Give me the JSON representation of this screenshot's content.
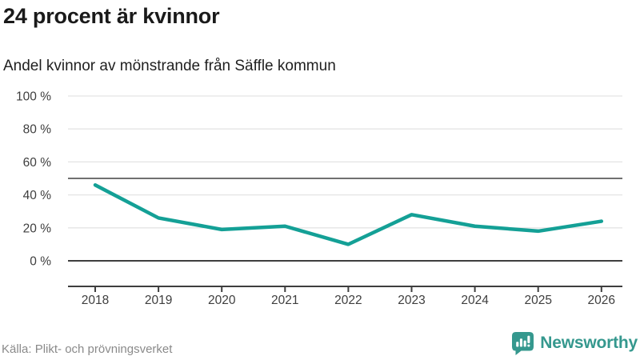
{
  "header": {
    "title": "24 procent är kvinnor",
    "subtitle": "Andel kvinnor av mönstrande från Säffle kommun"
  },
  "chart_data": {
    "type": "line",
    "title": "24 procent är kvinnor",
    "subtitle": "Andel kvinnor av mönstrande från Säffle kommun",
    "categories": [
      "2018",
      "2019",
      "2020",
      "2021",
      "2022",
      "2023",
      "2024",
      "2025",
      "2026"
    ],
    "series": [
      {
        "name": "Andel kvinnor av mönstrande",
        "values": [
          46,
          26,
          19,
          21,
          10,
          28,
          21,
          18,
          24
        ]
      }
    ],
    "unit": "%",
    "ylim": [
      0,
      100
    ],
    "yticks": [
      0,
      20,
      40,
      60,
      80,
      100
    ],
    "ytick_labels": [
      "0 %",
      "20 %",
      "40 %",
      "60 %",
      "80 %",
      "100 %"
    ],
    "reference_line": 50,
    "grid": true,
    "legend": "none",
    "colors": {
      "line": "#14a096",
      "grid": "#e4e4e4",
      "axis": "#3e3e3e",
      "reference": "#707070",
      "tick_text": "#3e3e3e"
    }
  },
  "footer": {
    "source": "Källa: Plikt- och prövningsverket",
    "brand": "Newsworthy",
    "brand_color": "#35988e"
  }
}
